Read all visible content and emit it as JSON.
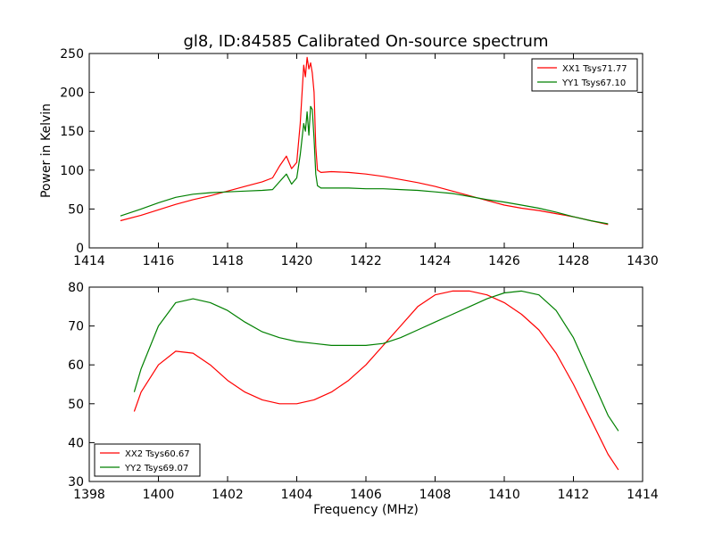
{
  "chart_data": [
    {
      "type": "line",
      "title": "gl8, ID:84585 Calibrated On-source spectrum",
      "xlabel": "",
      "ylabel": "Power in Kelvin",
      "xlim": [
        1414,
        1430
      ],
      "ylim": [
        0,
        250
      ],
      "xticks": [
        1414,
        1416,
        1418,
        1420,
        1422,
        1424,
        1426,
        1428,
        1430
      ],
      "yticks": [
        0,
        50,
        100,
        150,
        200,
        250
      ],
      "grid": false,
      "legend_position": "top-right",
      "series": [
        {
          "name": "XX1 Tsys71.77",
          "color": "#ff0000",
          "x": [
            1414.9,
            1415.5,
            1416.0,
            1416.5,
            1417.0,
            1417.5,
            1418.0,
            1418.5,
            1419.0,
            1419.3,
            1419.5,
            1419.7,
            1419.85,
            1420.0,
            1420.1,
            1420.2,
            1420.25,
            1420.3,
            1420.35,
            1420.4,
            1420.45,
            1420.5,
            1420.55,
            1420.6,
            1420.7,
            1421.0,
            1421.5,
            1422.0,
            1422.5,
            1423.0,
            1423.5,
            1424.0,
            1424.5,
            1425.0,
            1425.5,
            1426.0,
            1426.5,
            1427.0,
            1427.5,
            1428.0,
            1428.5,
            1429.0
          ],
          "y": [
            35,
            42,
            49,
            56,
            62,
            67,
            73,
            79,
            85,
            90,
            105,
            118,
            102,
            110,
            160,
            235,
            220,
            245,
            230,
            238,
            225,
            200,
            130,
            100,
            97,
            98,
            97,
            95,
            92,
            88,
            84,
            79,
            73,
            67,
            61,
            55,
            51,
            48,
            44,
            40,
            35,
            30
          ]
        },
        {
          "name": "YY1 Tsys67.10",
          "color": "#008000",
          "x": [
            1414.9,
            1415.5,
            1416.0,
            1416.5,
            1417.0,
            1417.5,
            1418.0,
            1418.5,
            1419.0,
            1419.3,
            1419.5,
            1419.7,
            1419.85,
            1420.0,
            1420.1,
            1420.2,
            1420.25,
            1420.3,
            1420.35,
            1420.4,
            1420.45,
            1420.5,
            1420.55,
            1420.6,
            1420.7,
            1421.0,
            1421.5,
            1422.0,
            1422.5,
            1423.0,
            1423.5,
            1424.0,
            1424.5,
            1425.0,
            1425.5,
            1426.0,
            1426.5,
            1427.0,
            1427.5,
            1428.0,
            1428.5,
            1429.0
          ],
          "y": [
            41,
            50,
            58,
            65,
            69,
            71,
            72,
            73,
            74,
            75,
            85,
            95,
            82,
            90,
            120,
            160,
            150,
            175,
            145,
            182,
            178,
            140,
            95,
            80,
            77,
            77,
            77,
            76,
            76,
            75,
            74,
            72,
            70,
            66,
            62,
            59,
            55,
            51,
            46,
            40,
            35,
            31
          ]
        }
      ]
    },
    {
      "type": "line",
      "title": "",
      "xlabel": "Frequency (MHz)",
      "ylabel": "",
      "xlim": [
        1398,
        1414
      ],
      "ylim": [
        30,
        80
      ],
      "xticks": [
        1398,
        1400,
        1402,
        1404,
        1406,
        1408,
        1410,
        1412,
        1414
      ],
      "yticks": [
        30,
        40,
        50,
        60,
        70,
        80
      ],
      "grid": false,
      "legend_position": "bottom-left",
      "series": [
        {
          "name": "XX2 Tsys60.67",
          "color": "#ff0000",
          "x": [
            1399.3,
            1399.5,
            1400.0,
            1400.5,
            1401.0,
            1401.5,
            1402.0,
            1402.5,
            1403.0,
            1403.5,
            1404.0,
            1404.5,
            1405.0,
            1405.5,
            1406.0,
            1406.5,
            1407.0,
            1407.5,
            1408.0,
            1408.5,
            1409.0,
            1409.5,
            1410.0,
            1410.5,
            1411.0,
            1411.5,
            1412.0,
            1412.5,
            1413.0,
            1413.3
          ],
          "y": [
            48,
            53,
            60,
            63.5,
            63,
            60,
            56,
            53,
            51,
            50,
            50,
            51,
            53,
            56,
            60,
            65,
            70,
            75,
            78,
            79,
            79,
            78,
            76,
            73,
            69,
            63,
            55,
            46,
            37,
            33
          ]
        },
        {
          "name": "YY2 Tsys69.07",
          "color": "#008000",
          "x": [
            1399.3,
            1399.5,
            1400.0,
            1400.5,
            1401.0,
            1401.5,
            1402.0,
            1402.5,
            1403.0,
            1403.5,
            1404.0,
            1404.5,
            1405.0,
            1405.5,
            1406.0,
            1406.5,
            1407.0,
            1407.5,
            1408.0,
            1408.5,
            1409.0,
            1409.5,
            1410.0,
            1410.5,
            1411.0,
            1411.5,
            1412.0,
            1412.5,
            1413.0,
            1413.3
          ],
          "y": [
            53,
            59,
            70,
            76,
            77,
            76,
            74,
            71,
            68.5,
            67,
            66,
            65.5,
            65,
            65,
            65,
            65.5,
            67,
            69,
            71,
            73,
            75,
            77,
            78.5,
            79,
            78,
            74,
            67,
            57,
            47,
            43
          ]
        }
      ]
    }
  ]
}
